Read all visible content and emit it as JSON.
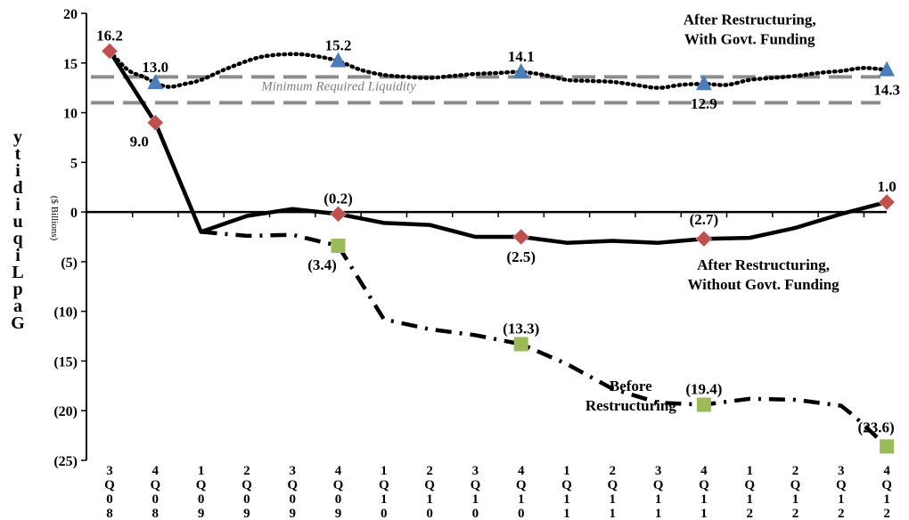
{
  "chart_data": {
    "type": "line",
    "ylabel": "Gap Liquidity",
    "yunit": "($ Billions)",
    "ylim": [
      -25,
      20
    ],
    "yticks": [
      20,
      15,
      10,
      5,
      0,
      -5,
      -10,
      -15,
      -20,
      -25
    ],
    "ytick_labels": [
      "20",
      "15",
      "10",
      "5",
      "0",
      "(5)",
      "(10)",
      "(15)",
      "(20)",
      "(25)"
    ],
    "categories": [
      "3Q08",
      "4Q08",
      "1Q09",
      "2Q09",
      "3Q09",
      "4Q09",
      "1Q10",
      "2Q10",
      "3Q10",
      "4Q10",
      "1Q11",
      "2Q11",
      "3Q11",
      "4Q11",
      "1Q12",
      "2Q12",
      "3Q12",
      "4Q12"
    ],
    "series": [
      {
        "name": "After Restructuring, With Govt. Funding",
        "style": "dotted",
        "marker": "triangle",
        "marker_color": "#4a7ebb",
        "x": [
          0,
          0.4,
          0.75,
          1.0,
          1.3,
          1.65,
          2.0,
          2.6,
          3.3,
          4.0,
          4.5,
          5.0,
          5.5,
          6.0,
          6.5,
          7.0,
          7.5,
          8.0,
          8.5,
          9.0,
          9.5,
          10.0,
          10.5,
          11.0,
          11.5,
          12.0,
          12.5,
          13.0,
          13.5,
          14.0,
          14.5,
          15.0,
          15.5,
          16.0,
          16.5,
          17.0
        ],
        "values": [
          16.2,
          14.3,
          13.6,
          13.0,
          12.6,
          12.9,
          13.3,
          14.5,
          15.6,
          15.9,
          15.7,
          15.2,
          14.3,
          13.8,
          13.6,
          13.5,
          13.7,
          13.9,
          14.0,
          14.1,
          13.8,
          13.3,
          13.2,
          13.1,
          12.8,
          12.5,
          12.8,
          12.9,
          12.8,
          13.3,
          13.5,
          13.7,
          14.0,
          14.2,
          14.5,
          14.3
        ],
        "markers": [
          {
            "x": 1,
            "value": 13.0
          },
          {
            "x": 5,
            "value": 15.2
          },
          {
            "x": 9,
            "value": 14.1
          },
          {
            "x": 13,
            "value": 12.9
          },
          {
            "x": 17,
            "value": 14.3
          }
        ]
      },
      {
        "name": "After Restructuring, Without Govt. Funding",
        "style": "solid",
        "marker": "diamond",
        "marker_color": "#c0504d",
        "x": [
          0,
          1,
          2,
          3,
          4,
          5,
          6,
          7,
          8,
          9,
          10,
          11,
          12,
          13,
          14,
          15,
          16,
          17
        ],
        "values": [
          16.2,
          9.0,
          -2.0,
          -0.4,
          0.3,
          -0.2,
          -1.1,
          -1.3,
          -2.5,
          -2.5,
          -3.1,
          -2.9,
          -3.1,
          -2.7,
          -2.6,
          -1.6,
          -0.2,
          1.0
        ],
        "markers": [
          {
            "x": 0,
            "value": 16.2
          },
          {
            "x": 1,
            "value": 9.0
          },
          {
            "x": 5,
            "value": -0.2
          },
          {
            "x": 9,
            "value": -2.5
          },
          {
            "x": 13,
            "value": -2.7
          },
          {
            "x": 17,
            "value": 1.0
          }
        ]
      },
      {
        "name": "Before Restructuring",
        "style": "dashdot",
        "marker": "square",
        "marker_color": "#9bbb59",
        "x": [
          2,
          3,
          4,
          5,
          6,
          7,
          8,
          9,
          10,
          11,
          12,
          13,
          14,
          15,
          16,
          16.3,
          17
        ],
        "values": [
          -2.0,
          -2.4,
          -2.3,
          -3.4,
          -10.8,
          -11.8,
          -12.4,
          -13.3,
          -15.3,
          -17.8,
          -19.2,
          -19.4,
          -18.8,
          -18.9,
          -19.5,
          -20.6,
          -23.6
        ],
        "markers": [
          {
            "x": 5,
            "value": -3.4
          },
          {
            "x": 9,
            "value": -13.3
          },
          {
            "x": 13,
            "value": -19.4
          },
          {
            "x": 17,
            "value": -23.6
          }
        ]
      }
    ],
    "reference_lines": [
      {
        "value": 13.6,
        "label": "Minimum Required Liquidity"
      },
      {
        "value": 11.0,
        "label": ""
      }
    ],
    "data_labels": [
      {
        "text": "16.2",
        "x": 0,
        "value": 16.2,
        "pos": "above"
      },
      {
        "text": "9.0",
        "x": 1,
        "value": 9.0,
        "pos": "below-left"
      },
      {
        "text": "13.0",
        "x": 1,
        "value": 13.0,
        "pos": "above"
      },
      {
        "text": "15.2",
        "x": 5,
        "value": 15.2,
        "pos": "above"
      },
      {
        "text": "14.1",
        "x": 9,
        "value": 14.1,
        "pos": "above"
      },
      {
        "text": "12.9",
        "x": 13,
        "value": 12.9,
        "pos": "below"
      },
      {
        "text": "14.3",
        "x": 17,
        "value": 14.3,
        "pos": "below"
      },
      {
        "text": "(0.2)",
        "x": 5,
        "value": -0.2,
        "pos": "above"
      },
      {
        "text": "(2.5)",
        "x": 9,
        "value": -2.5,
        "pos": "below"
      },
      {
        "text": "(2.7)",
        "x": 13,
        "value": -2.7,
        "pos": "above-high"
      },
      {
        "text": "1.0",
        "x": 17,
        "value": 1.0,
        "pos": "above"
      },
      {
        "text": "(3.4)",
        "x": 5,
        "value": -3.4,
        "pos": "below-left"
      },
      {
        "text": "(13.3)",
        "x": 9,
        "value": -13.3,
        "pos": "above"
      },
      {
        "text": "(19.4)",
        "x": 13,
        "value": -19.4,
        "pos": "above"
      },
      {
        "text": "(23.6)",
        "x": 17,
        "value": -23.6,
        "pos": "above-left"
      }
    ],
    "annotations": [
      {
        "lines": [
          "After Restructuring,",
          "With Govt. Funding"
        ],
        "x": 14.0,
        "value": 18.9
      },
      {
        "lines": [
          "After Restructuring,",
          "Without Govt. Funding"
        ],
        "x": 14.3,
        "value": -5.8
      },
      {
        "lines": [
          "Before",
          "Restructuring"
        ],
        "x": 11.4,
        "value": -18.0
      }
    ]
  }
}
